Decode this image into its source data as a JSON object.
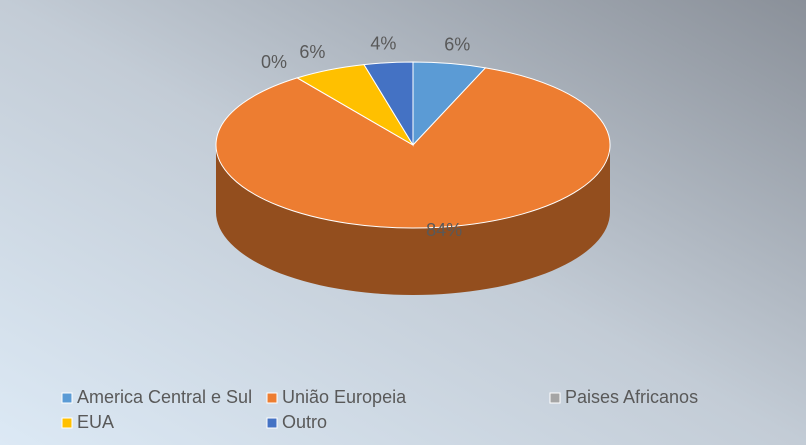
{
  "chart_data": {
    "type": "pie",
    "categories": [
      "America Central e Sul",
      "União Europeia",
      "Paises Africanos",
      "EUA",
      "Outro"
    ],
    "values": [
      6,
      84,
      0,
      6,
      4
    ],
    "value_labels": [
      "6%",
      "84%",
      "0%",
      "6%",
      "4%"
    ],
    "colors": [
      "#5b9bd5",
      "#ed7d31",
      "#a5a5a5",
      "#ffc000",
      "#4472c4"
    ],
    "legend": "bottom"
  }
}
